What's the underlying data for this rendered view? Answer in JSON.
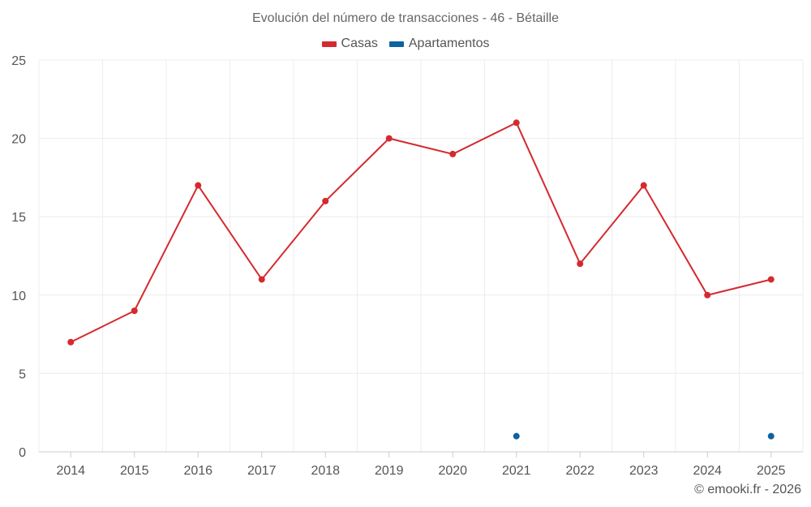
{
  "chart_data": {
    "type": "line",
    "title": "Evolución del número de transacciones - 46 - Bétaille",
    "xlabel": "",
    "ylabel": "",
    "categories": [
      "2014",
      "2015",
      "2016",
      "2017",
      "2018",
      "2019",
      "2020",
      "2021",
      "2022",
      "2023",
      "2024",
      "2025"
    ],
    "ylim": [
      0,
      25
    ],
    "yticks": [
      "0",
      "5",
      "10",
      "15",
      "20",
      "25"
    ],
    "legend_position": "top-center",
    "grid": true,
    "series": [
      {
        "name": "Casas",
        "color": "#d42a2f",
        "line": true,
        "values": [
          7,
          9,
          17,
          11,
          16,
          20,
          19,
          21,
          12,
          17,
          10,
          11
        ]
      },
      {
        "name": "Apartamentos",
        "color": "#0f62a0",
        "line": false,
        "values": [
          null,
          null,
          null,
          null,
          null,
          null,
          null,
          1,
          null,
          null,
          null,
          1
        ]
      }
    ]
  },
  "credit": "© emooki.fr - 2026"
}
